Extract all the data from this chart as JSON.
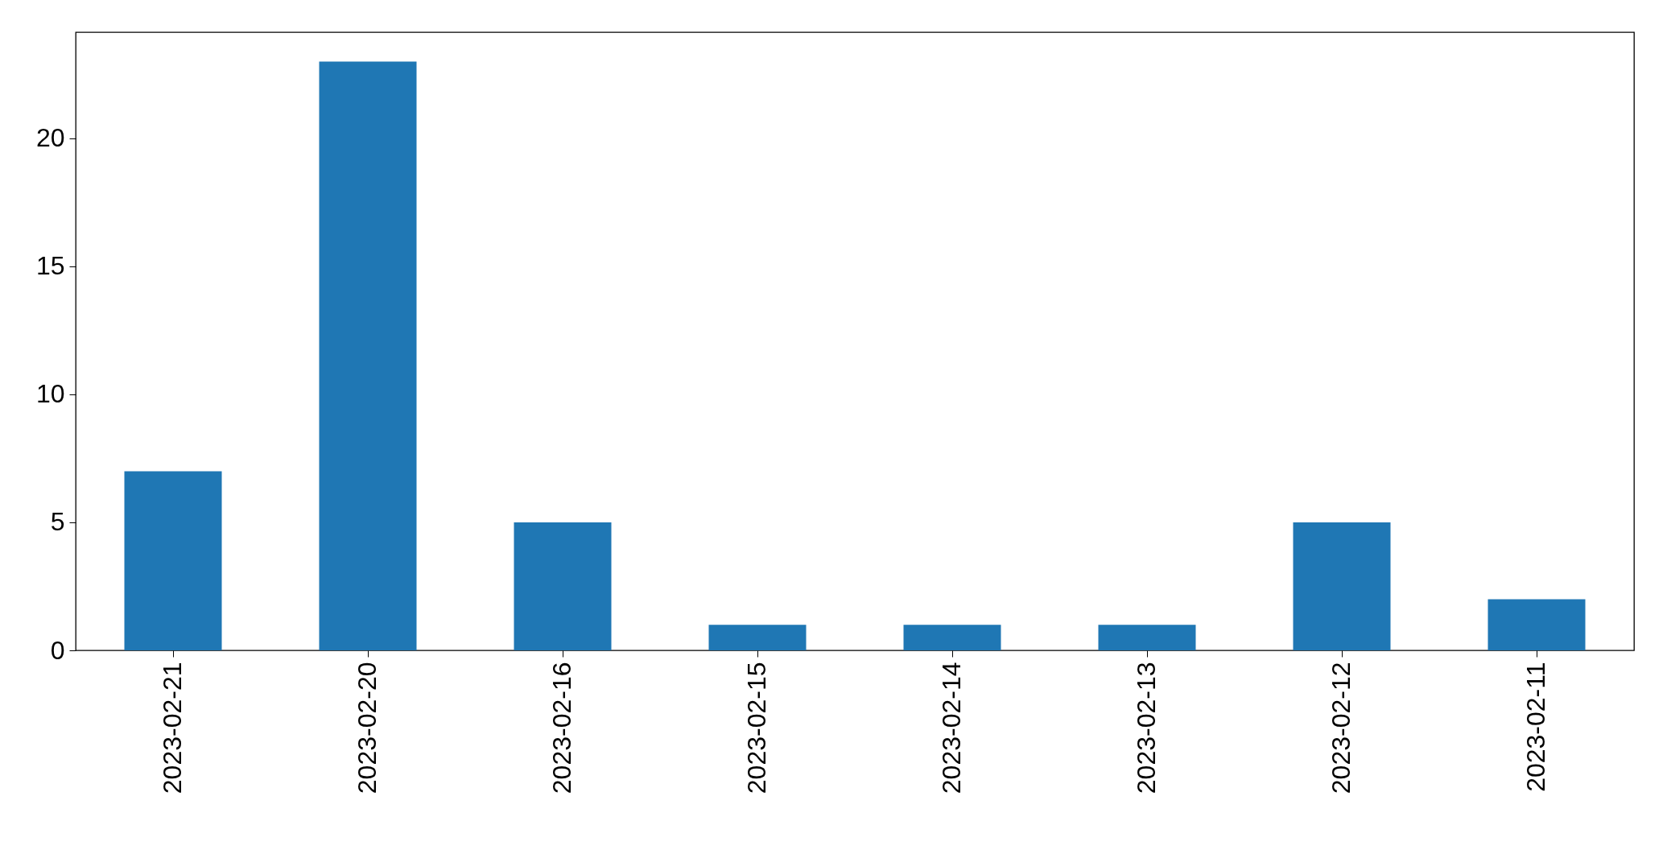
{
  "chart_data": {
    "type": "bar",
    "categories": [
      "2023-02-21",
      "2023-02-20",
      "2023-02-16",
      "2023-02-15",
      "2023-02-14",
      "2023-02-13",
      "2023-02-12",
      "2023-02-11"
    ],
    "values": [
      7,
      23,
      5,
      1,
      1,
      1,
      5,
      2
    ],
    "color": "#1f77b4",
    "ylim": [
      0,
      24.15
    ],
    "yticks": [
      0,
      5,
      10,
      15,
      20
    ],
    "grid": false
  }
}
